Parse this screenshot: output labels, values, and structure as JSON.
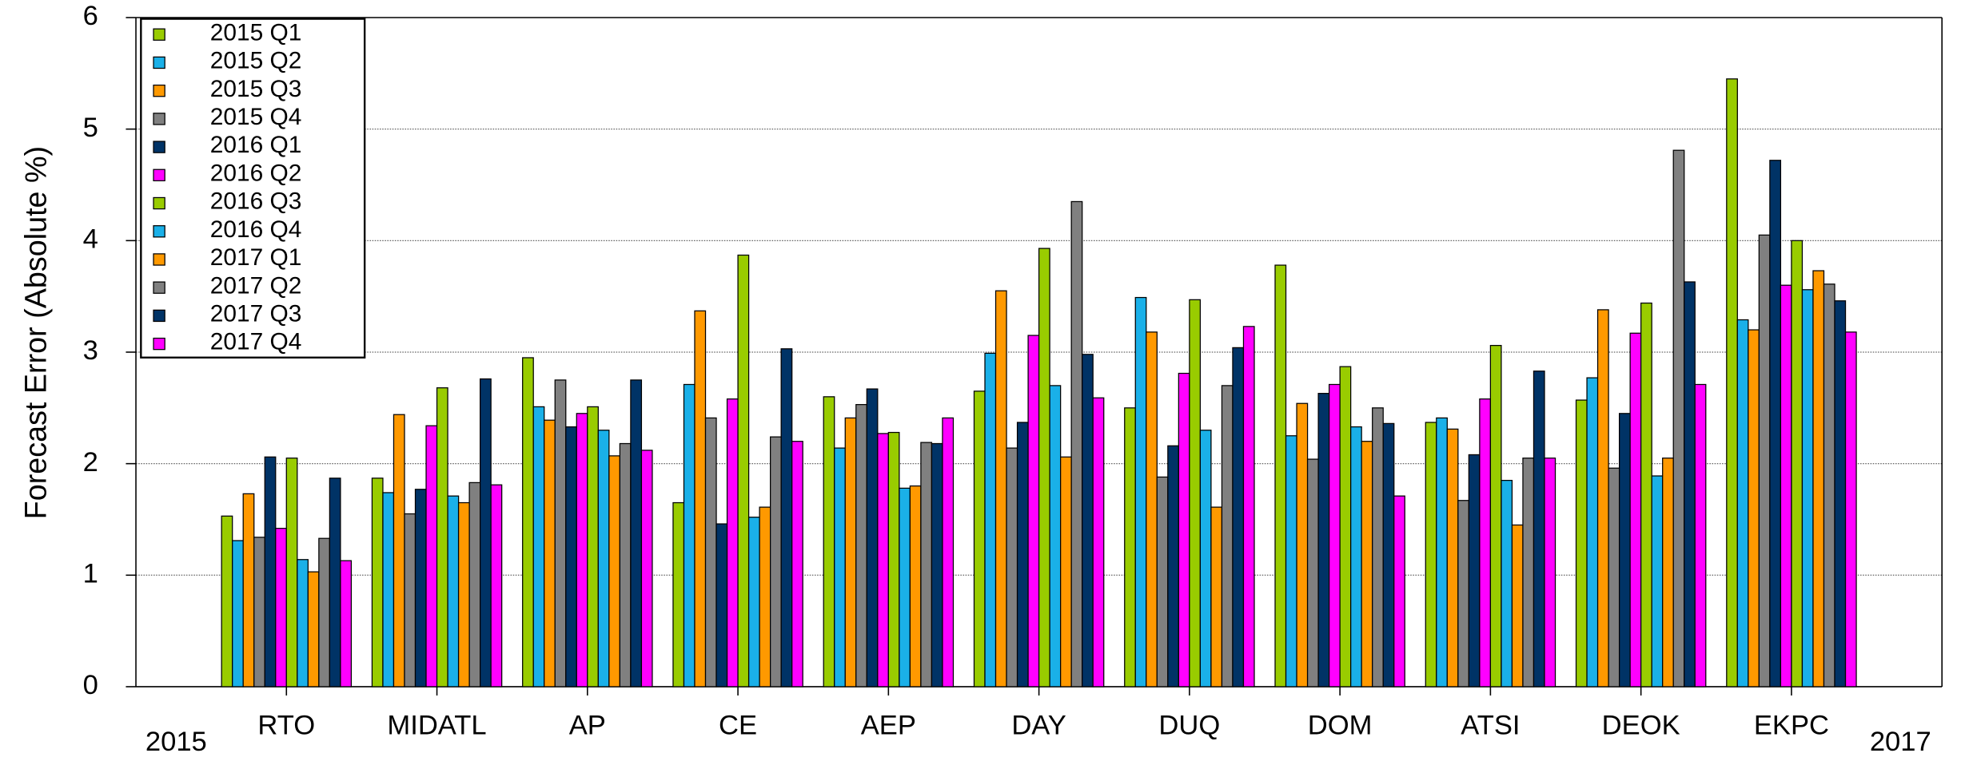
{
  "chart_data": {
    "type": "bar",
    "y_label": "Forecast Error  (Absolute %)",
    "annotations": [
      "2015",
      "2017"
    ],
    "categories": [
      "RTO",
      "MIDATL",
      "AP",
      "CE",
      "AEP",
      "DAY",
      "DUQ",
      "DOM",
      "ATSI",
      "DEOK",
      "EKPC"
    ],
    "series": [
      {
        "name": "2015 Q1",
        "color": "#99cc00",
        "values": [
          1.53,
          1.87,
          2.95,
          1.65,
          2.6,
          2.65,
          2.5,
          3.78,
          2.37,
          2.57,
          5.45
        ]
      },
      {
        "name": "2015 Q2",
        "color": "#1ab0e8",
        "values": [
          1.31,
          1.74,
          2.51,
          2.71,
          2.14,
          2.99,
          3.49,
          2.25,
          2.41,
          2.77,
          3.29
        ]
      },
      {
        "name": "2015 Q3",
        "color": "#ff9900",
        "values": [
          1.73,
          2.44,
          2.39,
          3.37,
          2.41,
          3.55,
          3.18,
          2.54,
          2.31,
          3.38,
          3.2
        ]
      },
      {
        "name": "2015 Q4",
        "color": "#808080",
        "values": [
          1.34,
          1.55,
          2.75,
          2.41,
          2.53,
          2.14,
          1.88,
          2.04,
          1.67,
          1.96,
          4.05
        ]
      },
      {
        "name": "2016 Q1",
        "color": "#003366",
        "values": [
          2.06,
          1.77,
          2.33,
          1.46,
          2.67,
          2.37,
          2.16,
          2.63,
          2.08,
          2.45,
          4.72
        ]
      },
      {
        "name": "2016 Q2",
        "color": "#ff00ff",
        "values": [
          1.42,
          2.34,
          2.45,
          2.58,
          2.27,
          3.15,
          2.81,
          2.71,
          2.58,
          3.17,
          3.6
        ]
      },
      {
        "name": "2016 Q3",
        "color": "#99cc00",
        "values": [
          2.05,
          2.68,
          2.51,
          3.87,
          2.28,
          3.93,
          3.47,
          2.87,
          3.06,
          3.44,
          4.0
        ]
      },
      {
        "name": "2016 Q4",
        "color": "#1ab0e8",
        "values": [
          1.14,
          1.71,
          2.3,
          1.52,
          1.78,
          2.7,
          2.3,
          2.33,
          1.85,
          1.89,
          3.56
        ]
      },
      {
        "name": "2017 Q1",
        "color": "#ff9900",
        "values": [
          1.03,
          1.65,
          2.07,
          1.61,
          1.8,
          2.06,
          1.61,
          2.2,
          1.45,
          2.05,
          3.73
        ]
      },
      {
        "name": "2017 Q2",
        "color": "#808080",
        "values": [
          1.33,
          1.83,
          2.18,
          2.24,
          2.19,
          4.35,
          2.7,
          2.5,
          2.05,
          4.81,
          3.61
        ]
      },
      {
        "name": "2017 Q3",
        "color": "#003366",
        "values": [
          1.87,
          2.76,
          2.75,
          3.03,
          2.18,
          2.98,
          3.04,
          2.36,
          2.83,
          3.63,
          3.46
        ]
      },
      {
        "name": "2017 Q4",
        "color": "#ff00ff",
        "values": [
          1.13,
          1.81,
          2.12,
          2.2,
          2.41,
          2.59,
          3.23,
          1.71,
          2.05,
          2.71,
          3.18
        ]
      }
    ],
    "ylim": [
      0,
      6
    ],
    "yticks": [
      0,
      1,
      2,
      3,
      4,
      5,
      6
    ],
    "grid": true,
    "legend": "top-left"
  }
}
